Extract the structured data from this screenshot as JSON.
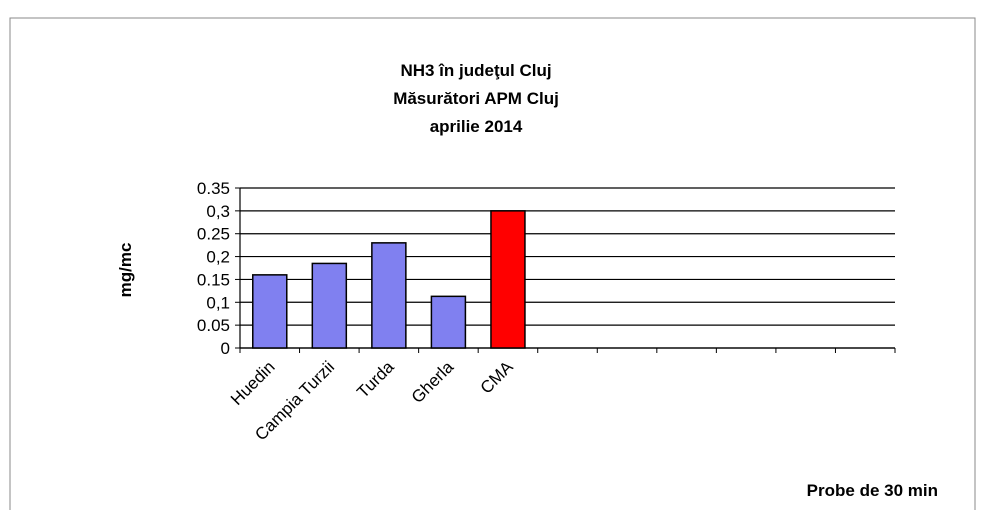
{
  "chart_data": {
    "type": "bar",
    "title": [
      "NH3 în judeţul Cluj",
      "Măsurători APM Cluj",
      "aprilie 2014"
    ],
    "y_label": "mg/mc",
    "x_label": "Probe de 30 min",
    "categories": [
      "Huedin",
      "Campia Turzii",
      "Turda",
      "Gherla",
      "CMA",
      null,
      null,
      null,
      null,
      null,
      null
    ],
    "values": [
      0.16,
      0.185,
      0.23,
      0.113,
      0.3,
      null,
      null,
      null,
      null,
      null,
      null
    ],
    "colors": [
      "#8080f0",
      "#8080f0",
      "#8080f0",
      "#8080f0",
      "#ff0000",
      null,
      null,
      null,
      null,
      null,
      null
    ],
    "ylim": [
      0,
      0.35
    ],
    "yticks": [
      0,
      0.05,
      {
        "value": 0.1,
        "label": "0,1"
      },
      0.15,
      {
        "value": 0.2,
        "label": "0,2"
      },
      0.25,
      {
        "value": 0.3,
        "label": "0,3"
      },
      0.35
    ],
    "grid": true
  }
}
